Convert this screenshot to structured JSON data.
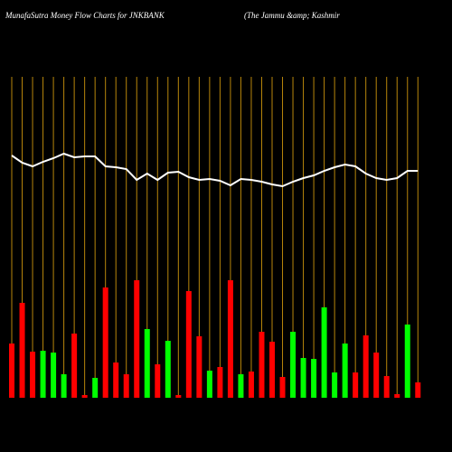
{
  "chart_data": {
    "type": "bar",
    "title": "MunafaSutra  Money Flow  Charts for JNKBANK",
    "subtitle": "(The   Jammu   &amp; Kashmir",
    "ylim": [
      0,
      355
    ],
    "bar_values": [
      60,
      105,
      51,
      52,
      50,
      26,
      71,
      3,
      22,
      122,
      39,
      26,
      130,
      76,
      37,
      63,
      3,
      118,
      68,
      30,
      34,
      130,
      26,
      29,
      73,
      62,
      23,
      73,
      44,
      43,
      100,
      28,
      60,
      28,
      69,
      50,
      24,
      4,
      81,
      17
    ],
    "bar_colors": [
      "#ff0000",
      "#ff0000",
      "#ff0000",
      "#00ff00",
      "#00ff00",
      "#00ff00",
      "#ff0000",
      "#ff0000",
      "#00ff00",
      "#ff0000",
      "#ff0000",
      "#ff0000",
      "#ff0000",
      "#00ff00",
      "#ff0000",
      "#00ff00",
      "#ff0000",
      "#ff0000",
      "#ff0000",
      "#00ff00",
      "#ff0000",
      "#ff0000",
      "#00ff00",
      "#ff0000",
      "#ff0000",
      "#ff0000",
      "#ff0000",
      "#00ff00",
      "#00ff00",
      "#00ff00",
      "#00ff00",
      "#00ff00",
      "#00ff00",
      "#ff0000",
      "#ff0000",
      "#ff0000",
      "#ff0000",
      "#ff0000",
      "#00ff00",
      "#ff0000"
    ],
    "line_values": [
      268,
      260,
      256,
      261,
      265,
      270,
      266,
      267,
      267,
      256,
      255,
      253,
      241,
      248,
      241,
      249,
      250,
      244,
      241,
      242,
      240,
      235,
      242,
      241,
      239,
      236,
      234,
      239,
      243,
      246,
      251,
      255,
      258,
      256,
      248,
      243,
      241,
      243,
      251,
      251
    ],
    "line_color": "#ffffff",
    "divider_color": "#b8860b"
  }
}
